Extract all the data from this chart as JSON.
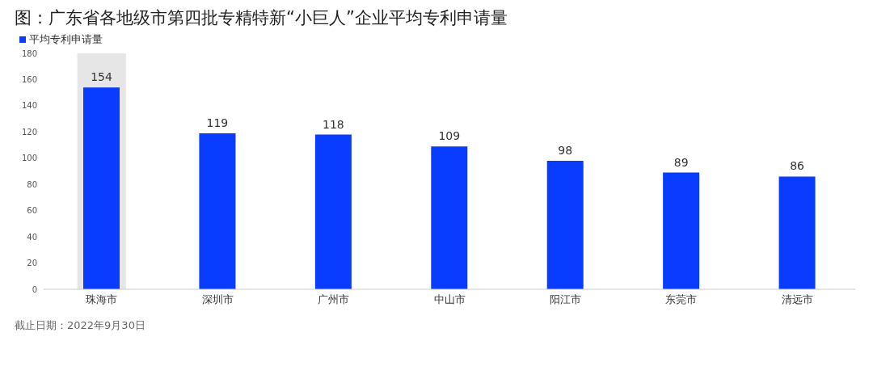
{
  "chart_data": {
    "type": "bar",
    "title": "图：广东省各地级市第四批专精特新“小巨人”企业平均专利申请量",
    "categories": [
      "珠海市",
      "深圳市",
      "广州市",
      "中山市",
      "阳江市",
      "东莞市",
      "清远市"
    ],
    "series": [
      {
        "name": "平均专利申请量",
        "color": "#0a3cff",
        "values": [
          154,
          119,
          118,
          109,
          98,
          89,
          86
        ]
      }
    ],
    "ylim": [
      0,
      180
    ],
    "yticks": [
      0,
      20,
      40,
      60,
      80,
      100,
      120,
      140,
      160,
      180
    ],
    "grid": false,
    "legend": "top left",
    "data_labels": true,
    "bands": [
      {
        "axis": "x",
        "from": "珠海市",
        "to": "珠海市",
        "color": "#e6e6e6"
      }
    ],
    "annotations": [
      "截止日期：2022年9月30日"
    ]
  }
}
